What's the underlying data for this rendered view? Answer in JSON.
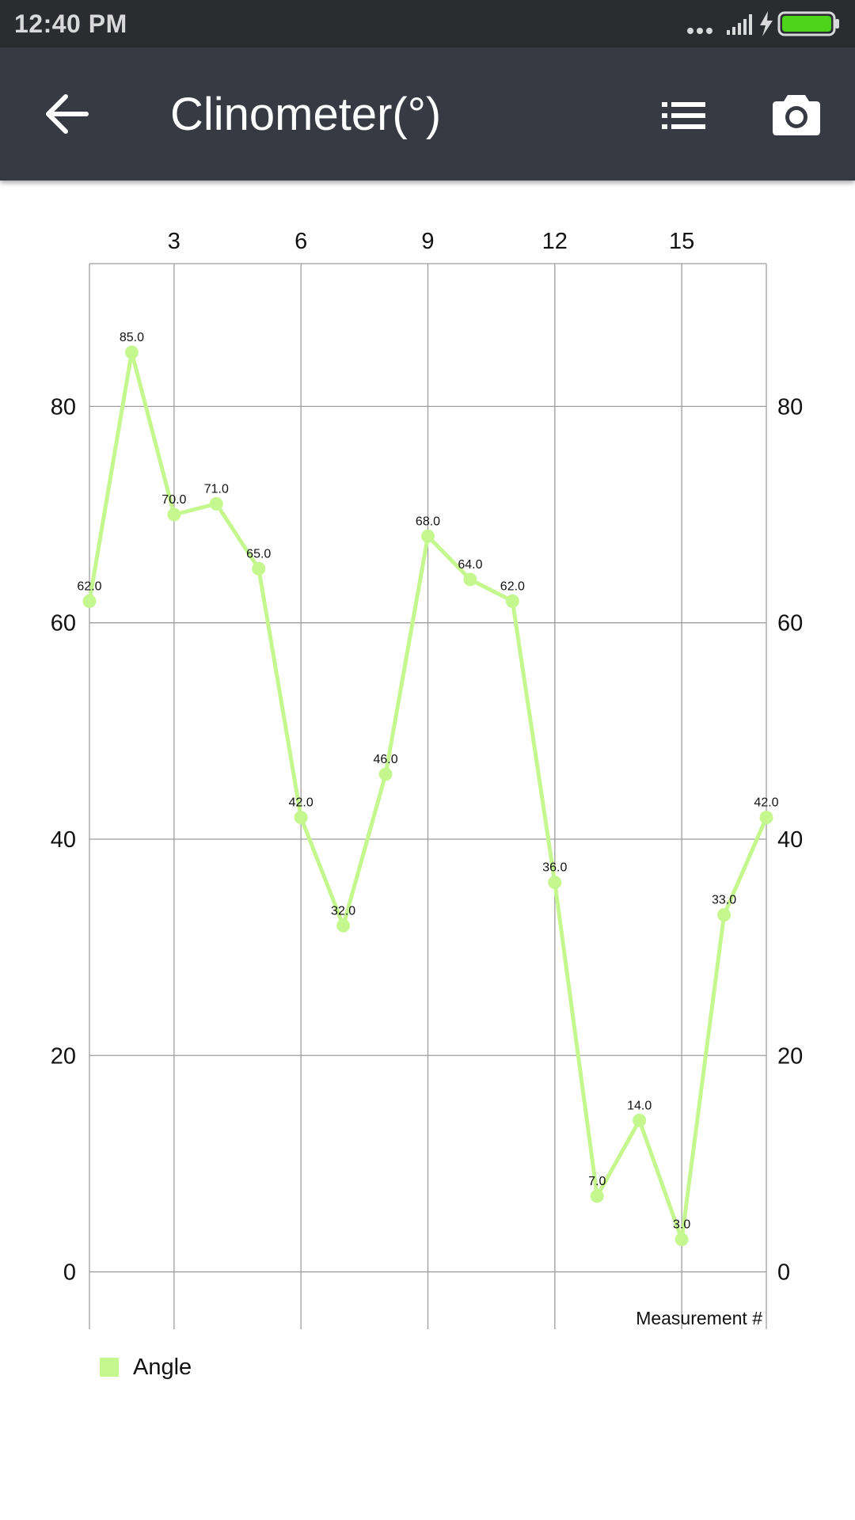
{
  "status_bar": {
    "time": "12:40 PM",
    "icons": [
      "more-dots-icon",
      "signal-icon",
      "charging-icon",
      "battery-icon"
    ],
    "battery_color": "#4cd31a"
  },
  "app_bar": {
    "title": "Clinometer(°)",
    "back_icon": "arrow-left-icon",
    "list_icon": "list-icon",
    "camera_icon": "camera-icon"
  },
  "chart_data": {
    "type": "line",
    "x": [
      1,
      2,
      3,
      4,
      5,
      6,
      7,
      8,
      9,
      10,
      11,
      12,
      13,
      14,
      15,
      16,
      17
    ],
    "series": [
      {
        "name": "Angle",
        "color": "#c5f78f",
        "values": [
          62,
          85,
          70,
          71,
          65,
          42,
          32,
          46,
          68,
          64,
          62,
          36,
          7,
          14,
          3,
          33,
          42
        ],
        "labels": [
          "62.0",
          "85.0",
          "70.0",
          "71.0",
          "65.0",
          "42.0",
          "32.0",
          "46.0",
          "68.0",
          "64.0",
          "62.0",
          "36.0",
          "7.0",
          "14.0",
          "3.0",
          "33.0",
          "42.0"
        ]
      }
    ],
    "xticks": [
      3,
      6,
      9,
      12,
      15
    ],
    "xtick_labels": [
      "3",
      "6",
      "9",
      "12",
      "15"
    ],
    "xtick_position": "top",
    "yticks": [
      0,
      20,
      40,
      60,
      80
    ],
    "ytick_labels": [
      "0",
      "20",
      "40",
      "60",
      "80"
    ],
    "ytick_position": "both",
    "xlim": [
      1,
      17
    ],
    "ylim": [
      -5.3,
      93.2
    ],
    "xlabel": "Measurement #",
    "ylabel": "",
    "title": "",
    "grid": true,
    "legend_position": "bottom-left"
  }
}
